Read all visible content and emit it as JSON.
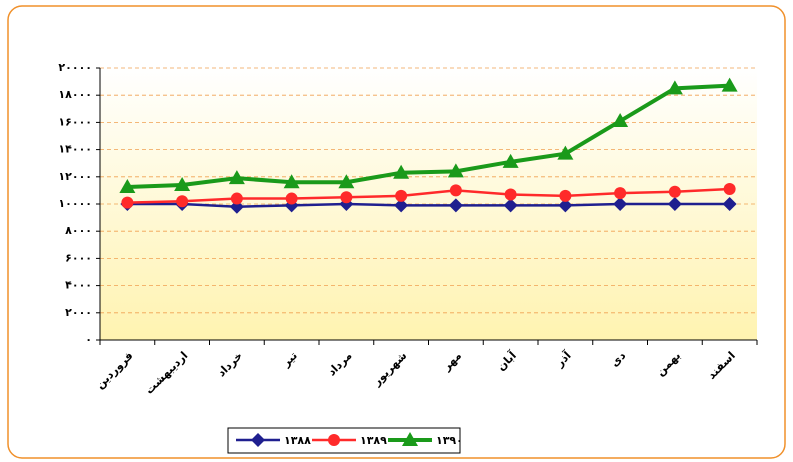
{
  "chart_data": {
    "type": "line",
    "categories": [
      "فروردین",
      "اردیبهشت",
      "خرداد",
      "تیر",
      "مرداد",
      "شهریور",
      "مهر",
      "آبان",
      "آذر",
      "دی",
      "بهمن",
      "اسفند"
    ],
    "series": [
      {
        "name": "۱۳۸۸",
        "color": "#1f1f8f",
        "values": [
          10000,
          10000,
          9800,
          9900,
          10000,
          9900,
          9900,
          9900,
          9900,
          10000,
          10000,
          10000
        ]
      },
      {
        "name": "۱۳۸۹",
        "color": "#ff2a2a",
        "values": [
          10100,
          10200,
          10400,
          10400,
          10500,
          10600,
          11000,
          10700,
          10600,
          10800,
          10900,
          11100
        ]
      },
      {
        "name": "۱۳۹۰",
        "color": "#1a9a1a",
        "values": [
          11250,
          11400,
          11900,
          11600,
          11600,
          12300,
          12400,
          13100,
          13700,
          16100,
          18500,
          18700
        ]
      }
    ],
    "ylim": [
      0,
      20000
    ],
    "yticks": [
      {
        "value": 0,
        "label": "۰"
      },
      {
        "value": 2000,
        "label": "۲۰۰۰"
      },
      {
        "value": 4000,
        "label": "۴۰۰۰"
      },
      {
        "value": 6000,
        "label": "۶۰۰۰"
      },
      {
        "value": 8000,
        "label": "۸۰۰۰"
      },
      {
        "value": 10000,
        "label": "۱۰۰۰۰"
      },
      {
        "value": 12000,
        "label": "۱۲۰۰۰"
      },
      {
        "value": 14000,
        "label": "۱۴۰۰۰"
      },
      {
        "value": 16000,
        "label": "۱۶۰۰۰"
      },
      {
        "value": 18000,
        "label": "۱۸۰۰۰"
      },
      {
        "value": 20000,
        "label": "۲۰۰۰۰"
      }
    ],
    "grid": true,
    "legend": "bottom"
  }
}
